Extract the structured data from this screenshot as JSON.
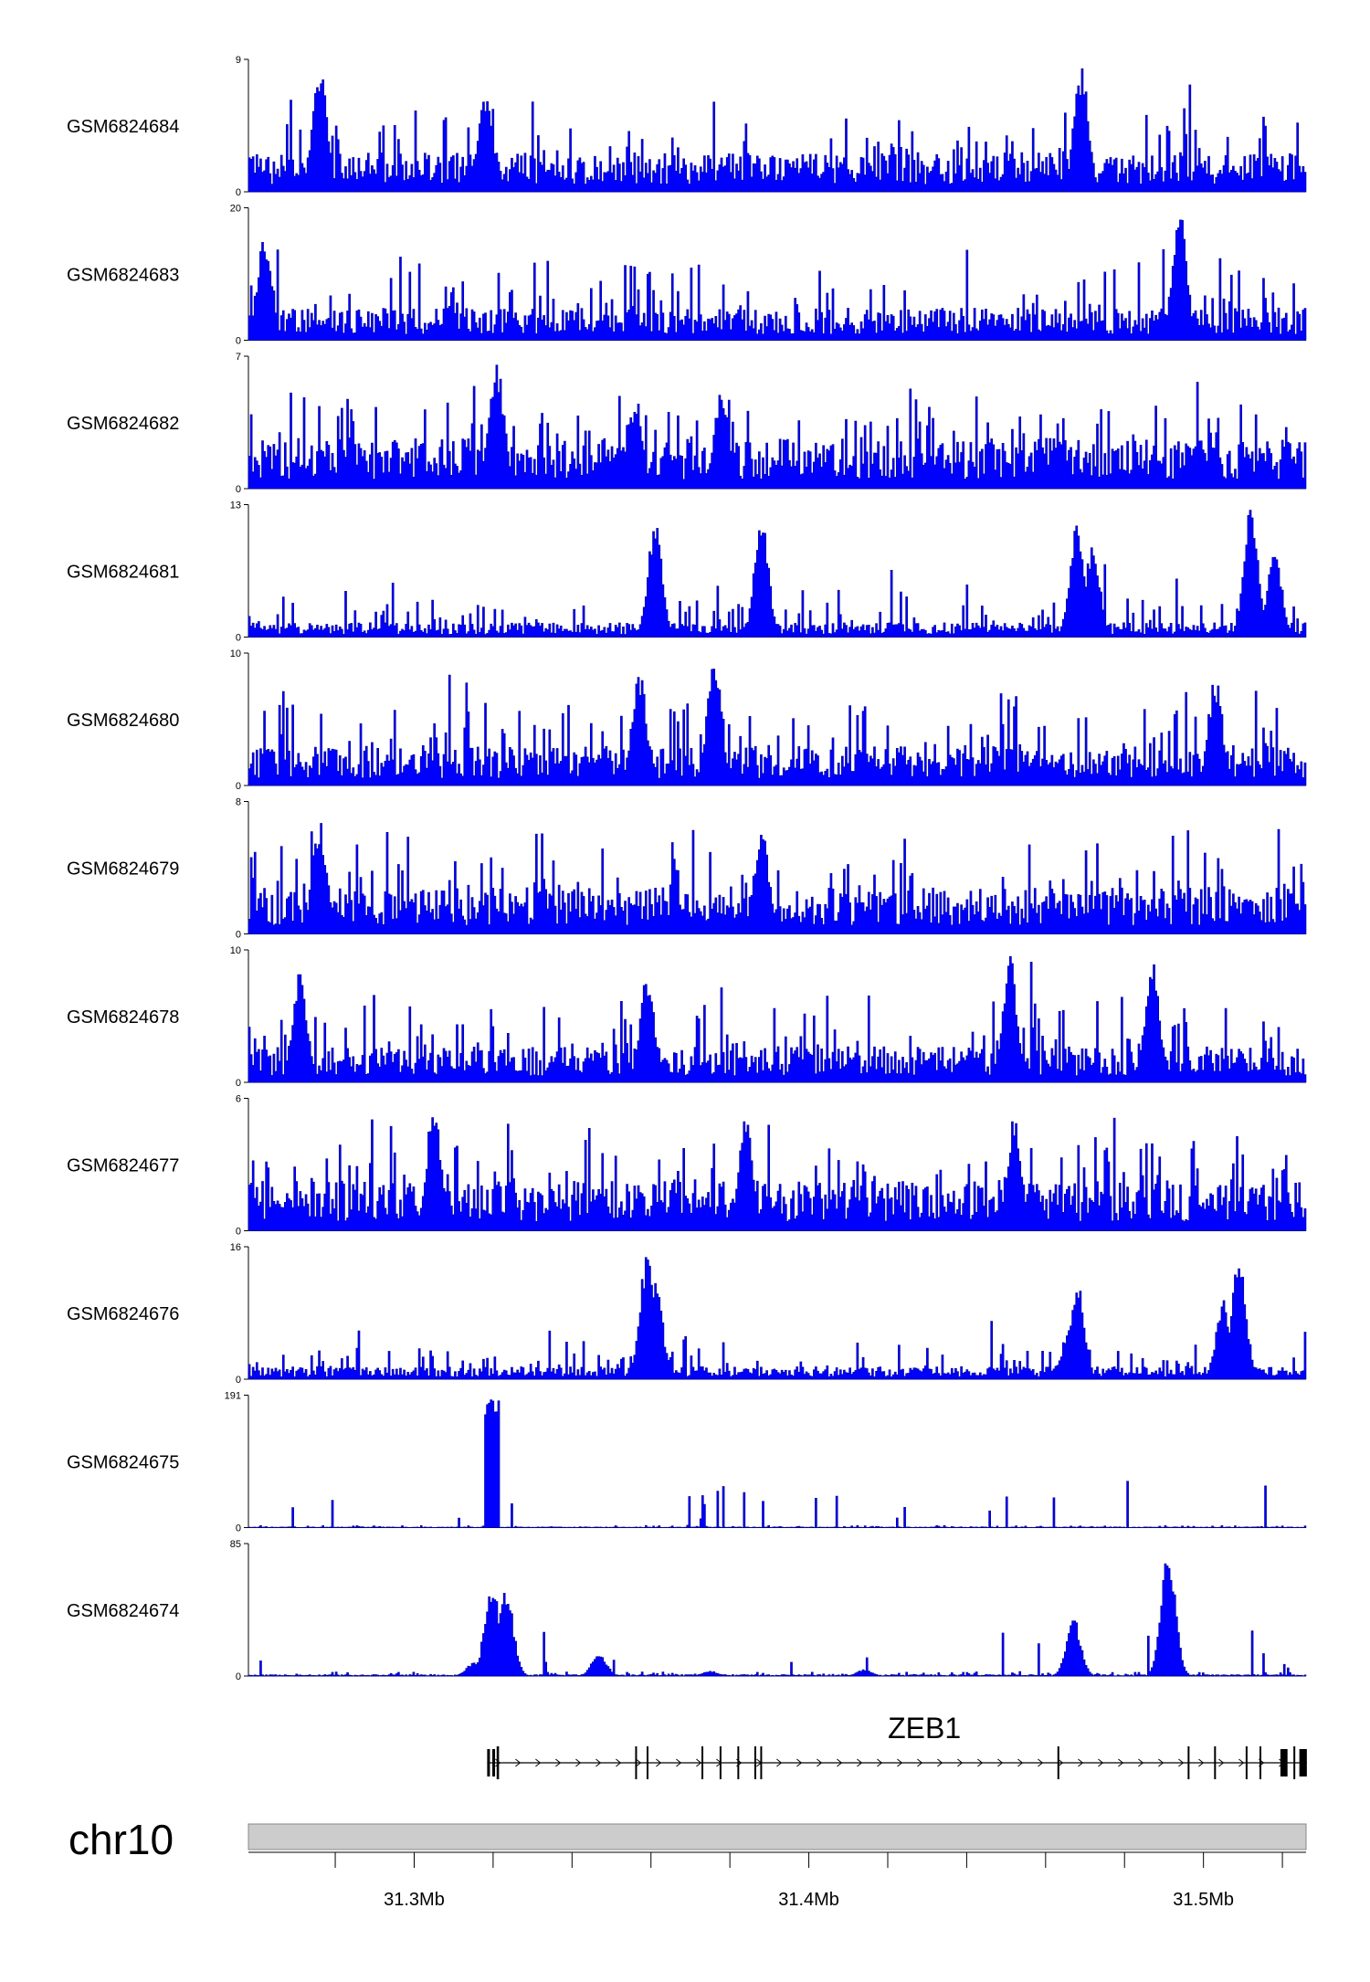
{
  "chart_data": {
    "type": "area",
    "chromosome": "chr10",
    "xlim": [
      31.258,
      31.526
    ],
    "x_ticks": [
      {
        "value": 31.3,
        "label": "31.3Mb"
      },
      {
        "value": 31.4,
        "label": "31.4Mb"
      },
      {
        "value": 31.5,
        "label": "31.5Mb"
      }
    ],
    "x_minor_ticks": [
      31.28,
      31.32,
      31.34,
      31.36,
      31.38,
      31.42,
      31.44,
      31.46,
      31.48,
      31.52
    ],
    "fill_color": "#0000ff",
    "line_color": "#00008b",
    "tracks": [
      {
        "name": "GSM6824684",
        "ymax": 9,
        "ymin": 0,
        "baseline": 0.22,
        "noise": 0.18,
        "peaks": [
          {
            "x": 31.276,
            "h": 1.0
          },
          {
            "x": 31.318,
            "h": 0.8
          },
          {
            "x": 31.469,
            "h": 0.96
          }
        ]
      },
      {
        "name": "GSM6824683",
        "ymax": 20,
        "ymin": 0,
        "baseline": 0.18,
        "noise": 0.22,
        "peaks": [
          {
            "x": 31.262,
            "h": 0.78
          },
          {
            "x": 31.494,
            "h": 0.98
          }
        ]
      },
      {
        "name": "GSM6824682",
        "ymax": 7,
        "ymin": 0,
        "baseline": 0.28,
        "noise": 0.22,
        "peaks": [
          {
            "x": 31.321,
            "h": 0.98
          },
          {
            "x": 31.356,
            "h": 0.66
          },
          {
            "x": 31.378,
            "h": 0.8
          }
        ]
      },
      {
        "name": "GSM6824681",
        "ymax": 13,
        "ymin": 0,
        "baseline": 0.08,
        "noise": 0.1,
        "peaks": [
          {
            "x": 31.361,
            "h": 0.88
          },
          {
            "x": 31.388,
            "h": 0.9
          },
          {
            "x": 31.468,
            "h": 0.92
          },
          {
            "x": 31.472,
            "h": 0.72
          },
          {
            "x": 31.512,
            "h": 0.98
          },
          {
            "x": 31.518,
            "h": 0.7
          }
        ]
      },
      {
        "name": "GSM6824680",
        "ymax": 10,
        "ymin": 0,
        "baseline": 0.22,
        "noise": 0.2,
        "peaks": [
          {
            "x": 31.357,
            "h": 0.9
          },
          {
            "x": 31.376,
            "h": 0.98
          },
          {
            "x": 31.503,
            "h": 0.84
          }
        ]
      },
      {
        "name": "GSM6824679",
        "ymax": 8,
        "ymin": 0,
        "baseline": 0.26,
        "noise": 0.22,
        "peaks": [
          {
            "x": 31.276,
            "h": 0.86
          },
          {
            "x": 31.388,
            "h": 0.84
          }
        ]
      },
      {
        "name": "GSM6824678",
        "ymax": 10,
        "ymin": 0,
        "baseline": 0.2,
        "noise": 0.2,
        "peaks": [
          {
            "x": 31.271,
            "h": 0.85
          },
          {
            "x": 31.359,
            "h": 0.85
          },
          {
            "x": 31.451,
            "h": 0.97
          },
          {
            "x": 31.487,
            "h": 0.97
          }
        ]
      },
      {
        "name": "GSM6824677",
        "ymax": 6,
        "ymin": 0,
        "baseline": 0.28,
        "noise": 0.22,
        "peaks": [
          {
            "x": 31.305,
            "h": 0.98
          },
          {
            "x": 31.384,
            "h": 0.88
          },
          {
            "x": 31.452,
            "h": 0.86
          }
        ]
      },
      {
        "name": "GSM6824676",
        "ymax": 16,
        "ymin": 0,
        "baseline": 0.07,
        "noise": 0.08,
        "peaks": [
          {
            "x": 31.359,
            "h": 0.98
          },
          {
            "x": 31.361,
            "h": 0.82
          },
          {
            "x": 31.468,
            "h": 0.74
          },
          {
            "x": 31.466,
            "h": 0.4
          },
          {
            "x": 31.509,
            "h": 0.96
          },
          {
            "x": 31.505,
            "h": 0.6
          }
        ]
      },
      {
        "name": "GSM6824675",
        "ymax": 191,
        "ymin": 0,
        "baseline": 0.004,
        "noise": 0.006,
        "block": [
          31.3178,
          31.3218,
          0.97
        ]
      },
      {
        "name": "GSM6824674",
        "ymax": 85,
        "ymin": 0,
        "baseline": 0.008,
        "noise": 0.012,
        "peaks": [
          {
            "x": 31.3197,
            "h": 0.73
          },
          {
            "x": 31.3233,
            "h": 0.67
          },
          {
            "x": 31.3193,
            "h": 0.12
          },
          {
            "x": 31.3151,
            "h": 0.1
          },
          {
            "x": 31.3469,
            "h": 0.18
          },
          {
            "x": 31.4671,
            "h": 0.45
          },
          {
            "x": 31.4911,
            "h": 0.98
          },
          {
            "x": 31.375,
            "h": 0.04
          },
          {
            "x": 31.4141,
            "h": 0.05
          }
        ]
      }
    ],
    "gene": {
      "name": "ZEB1",
      "start": 31.3185,
      "end": 31.5262,
      "strand": "+",
      "exons": [
        {
          "s": 31.3185,
          "e": 31.3192,
          "w": 2
        },
        {
          "s": 31.3198,
          "e": 31.3205,
          "w": 2
        },
        {
          "s": 31.3209,
          "e": 31.3215,
          "w": 1
        },
        {
          "s": 31.356,
          "e": 31.3562,
          "w": 1
        },
        {
          "s": 31.3589,
          "e": 31.3591,
          "w": 1
        },
        {
          "s": 31.3728,
          "e": 31.373,
          "w": 1
        },
        {
          "s": 31.3774,
          "e": 31.3776,
          "w": 1
        },
        {
          "s": 31.3819,
          "e": 31.3821,
          "w": 1
        },
        {
          "s": 31.3862,
          "e": 31.3864,
          "w": 1
        },
        {
          "s": 31.3877,
          "e": 31.388,
          "w": 1
        },
        {
          "s": 31.463,
          "e": 31.4632,
          "w": 1
        },
        {
          "s": 31.496,
          "e": 31.4962,
          "w": 1
        },
        {
          "s": 31.5027,
          "e": 31.5029,
          "w": 1
        },
        {
          "s": 31.5107,
          "e": 31.5109,
          "w": 1
        },
        {
          "s": 31.5142,
          "e": 31.5144,
          "w": 1
        },
        {
          "s": 31.5195,
          "e": 31.5213,
          "w": 2
        },
        {
          "s": 31.5228,
          "e": 31.523,
          "w": 1
        },
        {
          "s": 31.5243,
          "e": 31.5262,
          "w": 2
        }
      ]
    }
  }
}
